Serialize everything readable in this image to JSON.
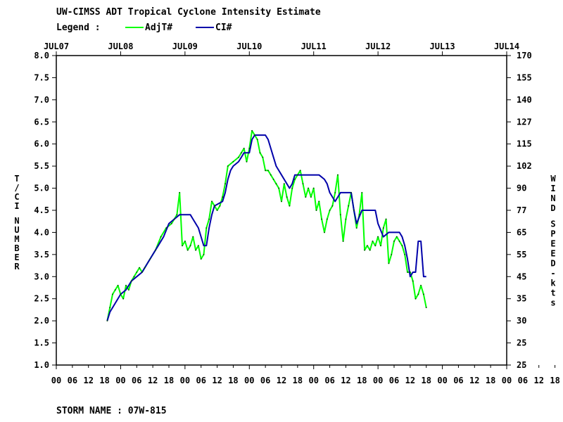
{
  "header": {
    "title": "UW-CIMSS ADT Tropical Cyclone Intensity Estimate",
    "legend_label": "Legend :",
    "legend_items": [
      {
        "name": "AdjT#",
        "color": "#00ff00"
      },
      {
        "name": "CI#",
        "color": "#0000aa"
      }
    ]
  },
  "footer": {
    "storm_label": "STORM NAME : 07W-815"
  },
  "chart_data": {
    "type": "line",
    "x_unit": "hours since JUL07 00 UTC",
    "top_axis": {
      "ticks": [
        "JUL07",
        "JUL08",
        "JUL09",
        "JUL10",
        "JUL11",
        "JUL12",
        "JUL13",
        "JUL14"
      ],
      "positions_hours": [
        0,
        24,
        48,
        72,
        96,
        120,
        144,
        168
      ]
    },
    "bottom_axis": {
      "labels": [
        "00",
        "06",
        "12",
        "18",
        "00",
        "06",
        "12",
        "18",
        "00",
        "06",
        "12",
        "18",
        "00",
        "06",
        "12",
        "18",
        "00",
        "06",
        "12",
        "18",
        "00",
        "06",
        "12",
        "18",
        "00",
        "06",
        "12",
        "18",
        "00",
        "06",
        "12",
        "18",
        "00(UTC)"
      ],
      "step_hours": 6
    },
    "left_axis": {
      "label": "T/CI NUMBER",
      "ticks": [
        "1.0",
        "1.5",
        "2.0",
        "2.5",
        "3.0",
        "3.5",
        "4.0",
        "4.5",
        "5.0",
        "5.5",
        "6.0",
        "6.5",
        "7.0",
        "7.5",
        "8.0"
      ],
      "ylim": [
        1.0,
        8.0
      ]
    },
    "right_axis": {
      "label": "WIND SPEED-kts",
      "ticks": [
        "25",
        "25",
        "30",
        "35",
        "45",
        "55",
        "65",
        "77",
        "90",
        "102",
        "115",
        "127",
        "140",
        "155",
        "170"
      ]
    },
    "xlim": [
      0,
      168
    ],
    "series": [
      {
        "name": "AdjT#",
        "color": "#00ff00",
        "points": [
          [
            19,
            2.0
          ],
          [
            20,
            2.3
          ],
          [
            21,
            2.6
          ],
          [
            22,
            2.7
          ],
          [
            23,
            2.8
          ],
          [
            24,
            2.6
          ],
          [
            25,
            2.5
          ],
          [
            26,
            2.8
          ],
          [
            27,
            2.7
          ],
          [
            28,
            2.9
          ],
          [
            29,
            3.0
          ],
          [
            30,
            3.1
          ],
          [
            31,
            3.2
          ],
          [
            32,
            3.1
          ],
          [
            33,
            3.2
          ],
          [
            35,
            3.4
          ],
          [
            37,
            3.6
          ],
          [
            39,
            3.9
          ],
          [
            41,
            4.1
          ],
          [
            43,
            4.2
          ],
          [
            44,
            4.3
          ],
          [
            45,
            4.4
          ],
          [
            46,
            4.9
          ],
          [
            47,
            3.7
          ],
          [
            48,
            3.8
          ],
          [
            49,
            3.6
          ],
          [
            50,
            3.7
          ],
          [
            51,
            3.9
          ],
          [
            52,
            3.6
          ],
          [
            53,
            3.7
          ],
          [
            54,
            3.4
          ],
          [
            55,
            3.5
          ],
          [
            56,
            4.1
          ],
          [
            57,
            4.3
          ],
          [
            58,
            4.7
          ],
          [
            59,
            4.6
          ],
          [
            60,
            4.5
          ],
          [
            61,
            4.6
          ],
          [
            62,
            4.8
          ],
          [
            63,
            5.1
          ],
          [
            64,
            5.5
          ],
          [
            66,
            5.6
          ],
          [
            68,
            5.7
          ],
          [
            69,
            5.8
          ],
          [
            70,
            5.9
          ],
          [
            71,
            5.6
          ],
          [
            72,
            5.9
          ],
          [
            73,
            6.3
          ],
          [
            74,
            6.2
          ],
          [
            75,
            6.1
          ],
          [
            76,
            5.8
          ],
          [
            77,
            5.7
          ],
          [
            78,
            5.4
          ],
          [
            79,
            5.4
          ],
          [
            80,
            5.3
          ],
          [
            81,
            5.2
          ],
          [
            82,
            5.1
          ],
          [
            83,
            5.0
          ],
          [
            84,
            4.7
          ],
          [
            85,
            5.1
          ],
          [
            86,
            4.8
          ],
          [
            87,
            4.6
          ],
          [
            88,
            5.0
          ],
          [
            89,
            5.2
          ],
          [
            90,
            5.3
          ],
          [
            91,
            5.4
          ],
          [
            92,
            5.1
          ],
          [
            93,
            4.8
          ],
          [
            94,
            5.0
          ],
          [
            95,
            4.8
          ],
          [
            96,
            5.0
          ],
          [
            97,
            4.5
          ],
          [
            98,
            4.7
          ],
          [
            99,
            4.3
          ],
          [
            100,
            4.0
          ],
          [
            101,
            4.3
          ],
          [
            102,
            4.5
          ],
          [
            103,
            4.6
          ],
          [
            104,
            4.9
          ],
          [
            105,
            5.3
          ],
          [
            106,
            4.4
          ],
          [
            107,
            3.8
          ],
          [
            108,
            4.3
          ],
          [
            109,
            4.6
          ],
          [
            110,
            4.9
          ],
          [
            111,
            4.5
          ],
          [
            112,
            4.1
          ],
          [
            113,
            4.4
          ],
          [
            114,
            4.9
          ],
          [
            115,
            3.6
          ],
          [
            116,
            3.7
          ],
          [
            117,
            3.6
          ],
          [
            118,
            3.8
          ],
          [
            119,
            3.7
          ],
          [
            120,
            3.9
          ],
          [
            121,
            3.7
          ],
          [
            122,
            4.1
          ],
          [
            123,
            4.3
          ],
          [
            124,
            3.3
          ],
          [
            125,
            3.5
          ],
          [
            126,
            3.8
          ],
          [
            127,
            3.9
          ],
          [
            128,
            3.8
          ],
          [
            129,
            3.7
          ],
          [
            130,
            3.5
          ],
          [
            131,
            3.1
          ],
          [
            132,
            3.1
          ],
          [
            133,
            2.9
          ],
          [
            134,
            2.5
          ],
          [
            135,
            2.6
          ],
          [
            136,
            2.8
          ],
          [
            137,
            2.6
          ],
          [
            138,
            2.3
          ]
        ]
      },
      {
        "name": "CI#",
        "color": "#0000aa",
        "points": [
          [
            19,
            2.0
          ],
          [
            20,
            2.2
          ],
          [
            22,
            2.4
          ],
          [
            24,
            2.6
          ],
          [
            26,
            2.7
          ],
          [
            28,
            2.9
          ],
          [
            30,
            3.0
          ],
          [
            32,
            3.1
          ],
          [
            34,
            3.3
          ],
          [
            36,
            3.5
          ],
          [
            38,
            3.7
          ],
          [
            40,
            3.9
          ],
          [
            42,
            4.2
          ],
          [
            44,
            4.3
          ],
          [
            46,
            4.4
          ],
          [
            48,
            4.4
          ],
          [
            50,
            4.4
          ],
          [
            51,
            4.3
          ],
          [
            52,
            4.2
          ],
          [
            53,
            4.1
          ],
          [
            54,
            3.9
          ],
          [
            55,
            3.7
          ],
          [
            56,
            3.7
          ],
          [
            57,
            4.1
          ],
          [
            58,
            4.4
          ],
          [
            59,
            4.6
          ],
          [
            62,
            4.7
          ],
          [
            63,
            4.9
          ],
          [
            64,
            5.2
          ],
          [
            65,
            5.4
          ],
          [
            66,
            5.5
          ],
          [
            68,
            5.6
          ],
          [
            69,
            5.7
          ],
          [
            70,
            5.8
          ],
          [
            72,
            5.8
          ],
          [
            73,
            6.1
          ],
          [
            74,
            6.2
          ],
          [
            78,
            6.2
          ],
          [
            79,
            6.1
          ],
          [
            80,
            5.9
          ],
          [
            81,
            5.7
          ],
          [
            82,
            5.5
          ],
          [
            83,
            5.4
          ],
          [
            84,
            5.3
          ],
          [
            85,
            5.2
          ],
          [
            86,
            5.1
          ],
          [
            87,
            5.0
          ],
          [
            88,
            5.1
          ],
          [
            89,
            5.3
          ],
          [
            90,
            5.3
          ],
          [
            93,
            5.3
          ],
          [
            98,
            5.3
          ],
          [
            100,
            5.2
          ],
          [
            101,
            5.1
          ],
          [
            102,
            4.9
          ],
          [
            103,
            4.8
          ],
          [
            104,
            4.7
          ],
          [
            105,
            4.8
          ],
          [
            106,
            4.9
          ],
          [
            110,
            4.9
          ],
          [
            111,
            4.5
          ],
          [
            112,
            4.2
          ],
          [
            114,
            4.5
          ],
          [
            119,
            4.5
          ],
          [
            120,
            4.2
          ],
          [
            122,
            3.9
          ],
          [
            124,
            4.0
          ],
          [
            128,
            4.0
          ],
          [
            129,
            3.9
          ],
          [
            130,
            3.7
          ],
          [
            131,
            3.4
          ],
          [
            132,
            3.0
          ],
          [
            133,
            3.1
          ],
          [
            134,
            3.1
          ],
          [
            135,
            3.8
          ],
          [
            136,
            3.8
          ],
          [
            137,
            3.0
          ],
          [
            138,
            3.0
          ]
        ]
      }
    ]
  }
}
